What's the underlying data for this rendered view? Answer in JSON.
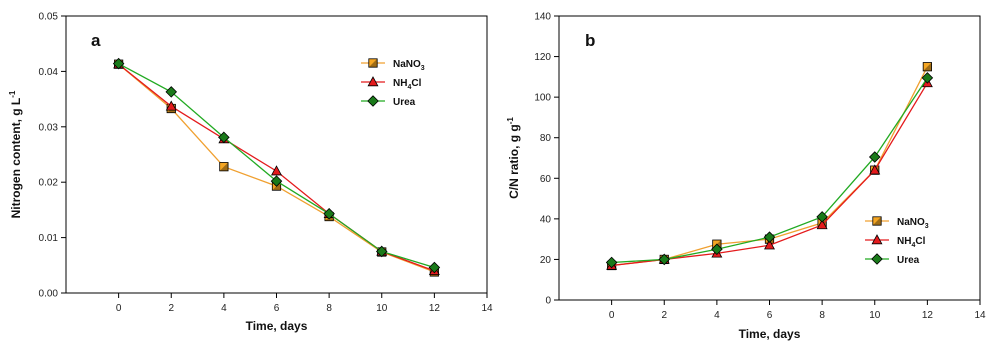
{
  "legend_entries": [
    {
      "key": "nano3",
      "label": "NaNO",
      "sub": "3",
      "tail": "",
      "color": "#f5a623",
      "line": "#f0a030",
      "marker": "square"
    },
    {
      "key": "nh4cl",
      "label": "NH",
      "sub": "4",
      "tail": "Cl",
      "color": "#e41a1c",
      "line": "#e41a1c",
      "marker": "triangle"
    },
    {
      "key": "urea",
      "label": "Urea",
      "sub": "",
      "tail": "",
      "color": "#1a7a1a",
      "line": "#22aa22",
      "marker": "diamond"
    }
  ],
  "chart_data": [
    {
      "panel": "a",
      "type": "line",
      "xlabel": "Time, days",
      "ylabel": "Nitrogen content, g L",
      "ylabel_sup": "-1",
      "xlim": [
        -2,
        14
      ],
      "ylim": [
        0,
        0.05
      ],
      "xticks": [
        0,
        2,
        4,
        6,
        8,
        10,
        12,
        14
      ],
      "yticks": [
        "0.00",
        "0.01",
        "0.02",
        "0.03",
        "0.04",
        "0.05"
      ],
      "legend_position": "top-right",
      "x": [
        0,
        2,
        4,
        6,
        8,
        10,
        12
      ],
      "series": [
        {
          "key": "nano3",
          "values": [
            0.0413,
            0.0333,
            0.0228,
            0.0193,
            0.0138,
            0.0074,
            0.0038
          ]
        },
        {
          "key": "nh4cl",
          "values": [
            0.0413,
            0.0337,
            0.0278,
            0.022,
            0.0143,
            0.0075,
            0.004
          ]
        },
        {
          "key": "urea",
          "values": [
            0.0414,
            0.0363,
            0.0281,
            0.0202,
            0.0143,
            0.0075,
            0.0046
          ]
        }
      ]
    },
    {
      "panel": "b",
      "type": "line",
      "xlabel": "Time, days",
      "ylabel": "C/N ratio, g g",
      "ylabel_sup": "-1",
      "xlim": [
        -2,
        14
      ],
      "ylim": [
        0,
        140
      ],
      "xticks": [
        0,
        2,
        4,
        6,
        8,
        10,
        12,
        14
      ],
      "yticks": [
        "0",
        "20",
        "40",
        "60",
        "80",
        "100",
        "120",
        "140"
      ],
      "legend_position": "bottom-right",
      "x": [
        0,
        2,
        4,
        6,
        8,
        10,
        12
      ],
      "series": [
        {
          "key": "nano3",
          "values": [
            17,
            20,
            27.5,
            30,
            38,
            64,
            115
          ]
        },
        {
          "key": "nh4cl",
          "values": [
            17,
            20,
            23,
            27,
            37,
            64,
            107
          ]
        },
        {
          "key": "urea",
          "values": [
            18.5,
            20,
            25,
            31,
            41,
            70.5,
            109.5
          ]
        }
      ]
    }
  ]
}
